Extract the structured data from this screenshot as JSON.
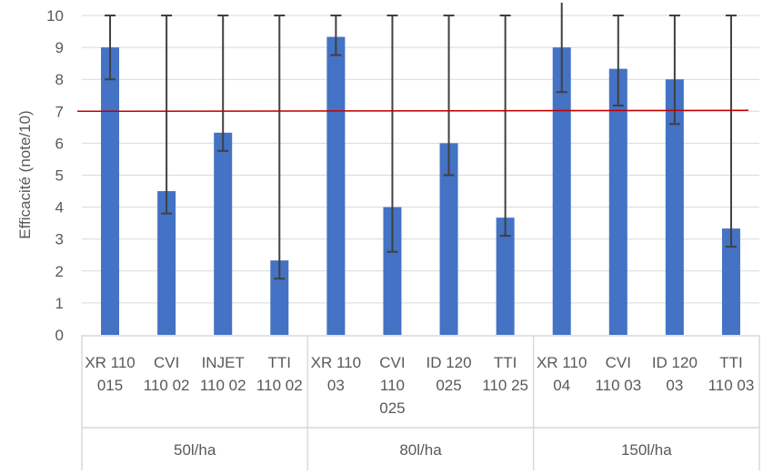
{
  "chart_data": {
    "type": "bar",
    "ylabel": "Efficacité (note/10)",
    "ylim": [
      0,
      10
    ],
    "yticks": [
      0,
      1,
      2,
      3,
      4,
      5,
      6,
      7,
      8,
      9,
      10
    ],
    "grid": true,
    "groups": [
      {
        "label": "50l/ha",
        "categories": [
          [
            "XR 110",
            "015"
          ],
          [
            "CVI",
            "110 02"
          ],
          [
            "INJET",
            "110 02"
          ],
          [
            "TTI",
            "110 02"
          ]
        ]
      },
      {
        "label": "80l/ha",
        "categories": [
          [
            "XR 110",
            "03"
          ],
          [
            "CVI",
            "110",
            "025"
          ],
          [
            "ID 120",
            "025"
          ],
          [
            "TTI",
            "110 25"
          ]
        ]
      },
      {
        "label": "150l/ha",
        "categories": [
          [
            "XR 110",
            "04"
          ],
          [
            "CVI",
            "110 03"
          ],
          [
            "ID 120",
            "03"
          ],
          [
            "TTI",
            "110 03"
          ]
        ]
      }
    ],
    "values": [
      9,
      4.5,
      6.33,
      2.33,
      9.33,
      4,
      6,
      3.67,
      9,
      8.33,
      8,
      3.33
    ],
    "errors": [
      1,
      0.7,
      0.57,
      0.57,
      0.57,
      1.4,
      1,
      0.57,
      1.4,
      1.15,
      1.4,
      0.57
    ],
    "threshold": 7,
    "colors": {
      "bar": "#4472c4",
      "threshold": "#c00000",
      "error": "#404040",
      "grid": "#d9d9d9"
    }
  }
}
